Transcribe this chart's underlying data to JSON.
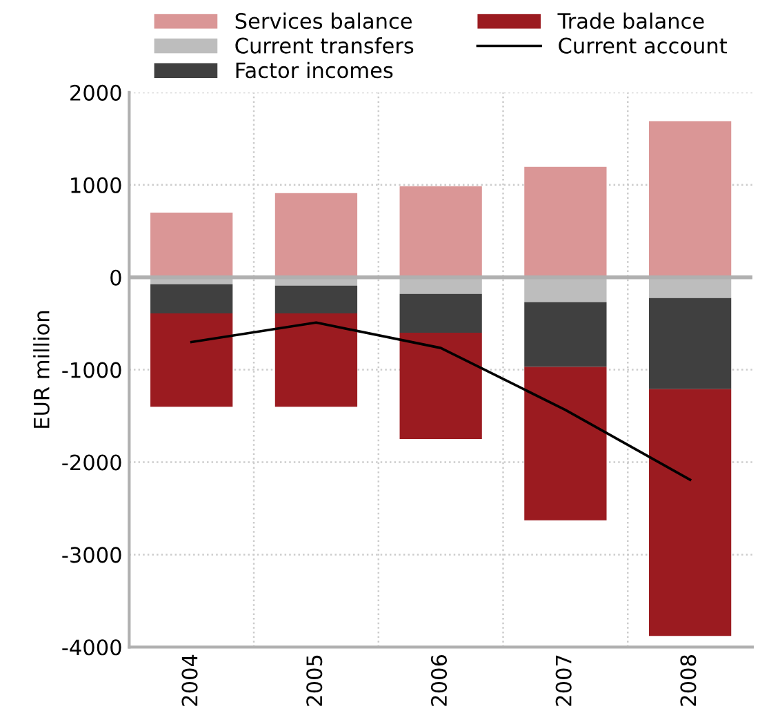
{
  "chart_data": {
    "type": "bar",
    "stacked": true,
    "ylabel": "EUR million",
    "categories": [
      "2004",
      "2005",
      "2006",
      "2007",
      "2008"
    ],
    "series": [
      {
        "name": "Services balance",
        "color": "#da9696",
        "values": [
          700,
          910,
          985,
          1195,
          1690
        ]
      },
      {
        "name": "Current transfers",
        "color": "#bdbdbd",
        "values": [
          -75,
          -90,
          -180,
          -270,
          -225
        ]
      },
      {
        "name": "Factor incomes",
        "color": "#404040",
        "values": [
          -315,
          -300,
          -420,
          -700,
          -985
        ]
      },
      {
        "name": "Trade balance",
        "color": "#9b1b20",
        "values": [
          -1010,
          -1010,
          -1150,
          -1660,
          -2670
        ]
      },
      {
        "name": "Current account",
        "color": "#000000",
        "type": "line",
        "values": [
          -700,
          -490,
          -765,
          -1435,
          -2190
        ]
      }
    ],
    "ylim": [
      -4000,
      2000
    ],
    "yticks": [
      -4000,
      -3000,
      -2000,
      -1000,
      0,
      1000,
      2000
    ],
    "ref_lines": [
      {
        "axis": "y",
        "value": 0,
        "color": "#b0b0b0"
      }
    ],
    "grid": true,
    "legend": "top"
  }
}
